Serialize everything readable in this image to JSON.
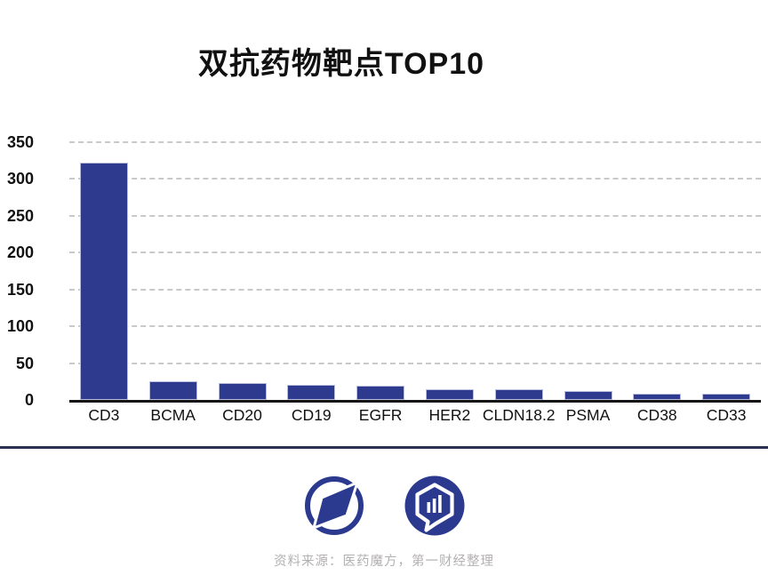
{
  "chart_data": {
    "type": "bar",
    "title": "双抗药物靶点TOP10",
    "categories": [
      "CD3",
      "BCMA",
      "CD20",
      "CD19",
      "EGFR",
      "HER2",
      "CLDN18.2",
      "PSMA",
      "CD38",
      "CD33"
    ],
    "values": [
      322,
      25,
      23,
      21,
      19,
      15,
      14,
      12,
      9,
      9
    ],
    "xlabel": "",
    "ylabel": "",
    "ylim": [
      0,
      350
    ],
    "yticks": [
      0,
      50,
      100,
      150,
      200,
      250,
      300,
      350
    ],
    "grid": "horizontal-dashed",
    "legend": "none",
    "bar_color": "#2e3a8e",
    "bar_border_color": "#b9bede",
    "gridline_color": "#c9c9c9",
    "axis_color": "#151515"
  },
  "footer": {
    "source": "资料来源：医药魔方，第一财经整理",
    "divider_color": "#2b3153",
    "logo_color": "#2b3a8f",
    "logos": [
      "yicai-logo",
      "pharmcube-logo"
    ]
  }
}
